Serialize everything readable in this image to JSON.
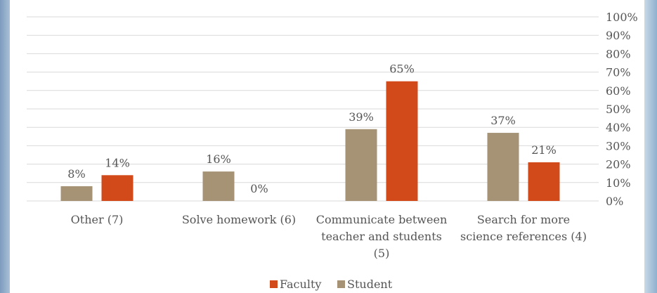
{
  "chart_data": {
    "type": "bar",
    "categories": [
      [
        "Other (7)"
      ],
      [
        "Solve homework (6)"
      ],
      [
        "Communicate between",
        "teacher and students",
        "(5)"
      ],
      [
        "Search for more",
        "science references (4)"
      ]
    ],
    "series": [
      {
        "name": "Student",
        "color": "#a69375",
        "values": [
          8,
          16,
          39,
          37
        ],
        "labels": [
          "8%",
          "16%",
          "39%",
          "37%"
        ]
      },
      {
        "name": "Faculty",
        "color": "#d24a1a",
        "values": [
          14,
          0,
          65,
          21
        ],
        "labels": [
          "14%",
          "0%",
          "65%",
          "21%"
        ]
      }
    ],
    "ylim": [
      0,
      100
    ],
    "yticks": [
      0,
      10,
      20,
      30,
      40,
      50,
      60,
      70,
      80,
      90,
      100
    ],
    "ytick_labels": [
      "0%",
      "10%",
      "20%",
      "30%",
      "40%",
      "50%",
      "60%",
      "70%",
      "80%",
      "90%",
      "100%"
    ],
    "y_axis_side": "right",
    "grid": true,
    "legend": {
      "placement": "bottom-center",
      "entries": [
        {
          "name": "Faculty",
          "color": "#d24a1a"
        },
        {
          "name": "Student",
          "color": "#a69375"
        }
      ]
    }
  }
}
